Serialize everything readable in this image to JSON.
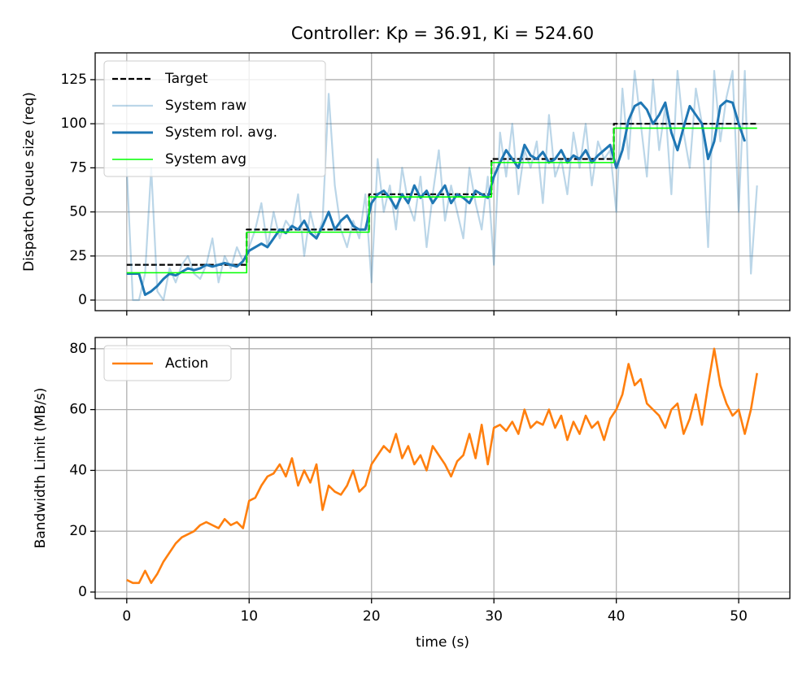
{
  "chart_data": [
    {
      "type": "line",
      "title": "Controller: Kp = 36.91, Ki = 524.60",
      "ylabel": "Dispatch Queue size (req)",
      "xlim": [
        -2.58,
        54.18
      ],
      "xticks": [
        0,
        10,
        20,
        30,
        40,
        50
      ],
      "ylim": [
        -6,
        140.2
      ],
      "yticks": [
        0,
        25,
        50,
        75,
        100,
        125
      ],
      "grid": true,
      "legend": "upper left",
      "series": [
        {
          "name": "Target",
          "color": "#000000",
          "linestyle": "dashed",
          "linewidth": 2.2,
          "opacity": 1,
          "x": [
            0,
            9.8,
            9.8,
            19.8,
            19.8,
            29.8,
            29.8,
            39.8,
            39.8,
            51.5
          ],
          "values": [
            20,
            20,
            40,
            40,
            60,
            60,
            80,
            80,
            100,
            100
          ]
        },
        {
          "name": "System raw",
          "color": "#1f77b4",
          "linestyle": "solid",
          "linewidth": 2.2,
          "opacity": 0.3,
          "x": [
            0,
            0.5,
            1,
            1.5,
            2,
            2.5,
            3,
            3.5,
            4,
            4.5,
            5,
            5.5,
            6,
            6.5,
            7,
            7.5,
            8,
            8.5,
            9,
            9.5,
            10,
            10.5,
            11,
            11.5,
            12,
            12.5,
            13,
            13.5,
            14,
            14.5,
            15,
            15.5,
            16,
            16.5,
            17,
            17.5,
            18,
            18.5,
            19,
            19.5,
            20,
            20.5,
            21,
            21.5,
            22,
            22.5,
            23,
            23.5,
            24,
            24.5,
            25,
            25.5,
            26,
            26.5,
            27,
            27.5,
            28,
            28.5,
            29,
            29.5,
            30,
            30.5,
            31,
            31.5,
            32,
            32.5,
            33,
            33.5,
            34,
            34.5,
            35,
            35.5,
            36,
            36.5,
            37,
            37.5,
            38,
            38.5,
            39,
            39.5,
            40,
            40.5,
            41,
            41.5,
            42,
            42.5,
            43,
            43.5,
            44,
            44.5,
            45,
            45.5,
            46,
            46.5,
            47,
            47.5,
            48,
            48.5,
            49,
            49.5,
            50,
            50.5,
            51,
            51.5
          ],
          "values": [
            75,
            0,
            0,
            15,
            75,
            5,
            0,
            18,
            10,
            20,
            25,
            15,
            12,
            20,
            35,
            10,
            25,
            18,
            30,
            22,
            30,
            40,
            55,
            30,
            50,
            35,
            45,
            40,
            60,
            25,
            50,
            35,
            45,
            117,
            65,
            40,
            30,
            45,
            35,
            60,
            10,
            80,
            50,
            65,
            40,
            75,
            55,
            45,
            70,
            30,
            60,
            85,
            45,
            65,
            50,
            35,
            75,
            55,
            40,
            70,
            20,
            95,
            70,
            100,
            60,
            85,
            75,
            90,
            55,
            105,
            70,
            80,
            60,
            95,
            75,
            100,
            65,
            90,
            80,
            85,
            50,
            120,
            80,
            130,
            100,
            70,
            125,
            85,
            110,
            60,
            130,
            95,
            75,
            120,
            100,
            30,
            130,
            90,
            115,
            130,
            50,
            130,
            15,
            65
          ]
        },
        {
          "name": "System rol. avg.",
          "color": "#1f77b4",
          "linestyle": "solid",
          "linewidth": 3,
          "opacity": 1,
          "x": [
            0,
            0.5,
            1,
            1.5,
            2,
            2.5,
            3,
            3.5,
            4,
            4.5,
            5,
            5.5,
            6,
            6.5,
            7,
            7.5,
            8,
            8.5,
            9,
            9.5,
            10,
            10.5,
            11,
            11.5,
            12,
            12.5,
            13,
            13.5,
            14,
            14.5,
            15,
            15.5,
            16,
            16.5,
            17,
            17.5,
            18,
            18.5,
            19,
            19.5,
            20,
            20.5,
            21,
            21.5,
            22,
            22.5,
            23,
            23.5,
            24,
            24.5,
            25,
            25.5,
            26,
            26.5,
            27,
            27.5,
            28,
            28.5,
            29,
            29.5,
            30,
            30.5,
            31,
            31.5,
            32,
            32.5,
            33,
            33.5,
            34,
            34.5,
            35,
            35.5,
            36,
            36.5,
            37,
            37.5,
            38,
            38.5,
            39,
            39.5,
            40,
            40.5,
            41,
            41.5,
            42,
            42.5,
            43,
            43.5,
            44,
            44.5,
            45,
            45.5,
            46,
            46.5,
            47,
            47.5,
            48,
            48.5,
            49,
            49.5,
            50,
            50.5
          ],
          "values": [
            15,
            15,
            15,
            3,
            5,
            8,
            12,
            15,
            14,
            16,
            18,
            17,
            18,
            20,
            19,
            20,
            21,
            20,
            19,
            22,
            28,
            30,
            32,
            30,
            35,
            40,
            38,
            42,
            40,
            45,
            38,
            35,
            42,
            50,
            40,
            45,
            48,
            42,
            40,
            40,
            55,
            60,
            62,
            58,
            52,
            60,
            55,
            65,
            58,
            62,
            55,
            60,
            65,
            55,
            60,
            58,
            55,
            62,
            60,
            58,
            70,
            78,
            85,
            80,
            75,
            88,
            82,
            80,
            84,
            78,
            80,
            85,
            78,
            82,
            80,
            85,
            78,
            82,
            85,
            88,
            75,
            85,
            102,
            110,
            112,
            108,
            100,
            105,
            112,
            95,
            85,
            98,
            110,
            105,
            100,
            80,
            90,
            110,
            113,
            112,
            100,
            90
          ]
        },
        {
          "name": "System avg",
          "color": "#00ff00",
          "linestyle": "solid",
          "linewidth": 1.6,
          "opacity": 1,
          "x": [
            0,
            9.8,
            9.8,
            19.8,
            19.8,
            29.8,
            29.8,
            39.8,
            39.8,
            51.5
          ],
          "values": [
            15.5,
            15.5,
            38.5,
            38.5,
            58.5,
            58.5,
            78,
            78,
            97.5,
            97.5
          ]
        }
      ]
    },
    {
      "type": "line",
      "xlabel": "time (s)",
      "ylabel": "Bandwidth Limit (MB/s)",
      "xlim": [
        -2.58,
        54.18
      ],
      "xticks": [
        0,
        10,
        20,
        30,
        40,
        50
      ],
      "ylim": [
        -2.14,
        83.7
      ],
      "yticks": [
        0,
        20,
        40,
        60,
        80
      ],
      "grid": true,
      "legend": "upper left",
      "series": [
        {
          "name": "Action",
          "color": "#ff7f0e",
          "linestyle": "solid",
          "linewidth": 2.6,
          "opacity": 1,
          "x": [
            0,
            0.5,
            1,
            1.5,
            2,
            2.5,
            3,
            3.5,
            4,
            4.5,
            5,
            5.5,
            6,
            6.5,
            7,
            7.5,
            8,
            8.5,
            9,
            9.5,
            10,
            10.5,
            11,
            11.5,
            12,
            12.5,
            13,
            13.5,
            14,
            14.5,
            15,
            15.5,
            16,
            16.5,
            17,
            17.5,
            18,
            18.5,
            19,
            19.5,
            20,
            20.5,
            21,
            21.5,
            22,
            22.5,
            23,
            23.5,
            24,
            24.5,
            25,
            25.5,
            26,
            26.5,
            27,
            27.5,
            28,
            28.5,
            29,
            29.5,
            30,
            30.5,
            31,
            31.5,
            32,
            32.5,
            33,
            33.5,
            34,
            34.5,
            35,
            35.5,
            36,
            36.5,
            37,
            37.5,
            38,
            38.5,
            39,
            39.5,
            40,
            40.5,
            41,
            41.5,
            42,
            42.5,
            43,
            43.5,
            44,
            44.5,
            45,
            45.5,
            46,
            46.5,
            47,
            47.5,
            48,
            48.5,
            49,
            49.5,
            50,
            50.5,
            51,
            51.5
          ],
          "values": [
            4,
            3,
            3,
            7,
            3,
            6,
            10,
            13,
            16,
            18,
            19,
            20,
            22,
            23,
            22,
            21,
            24,
            22,
            23,
            21,
            30,
            31,
            35,
            38,
            39,
            42,
            38,
            44,
            35,
            40,
            36,
            42,
            27,
            35,
            33,
            32,
            35,
            40,
            33,
            35,
            42,
            45,
            48,
            46,
            52,
            44,
            48,
            42,
            45,
            40,
            48,
            45,
            42,
            38,
            43,
            45,
            52,
            44,
            55,
            42,
            54,
            55,
            53,
            56,
            52,
            60,
            54,
            56,
            55,
            60,
            54,
            58,
            50,
            56,
            52,
            58,
            54,
            56,
            50,
            57,
            60,
            65,
            75,
            68,
            70,
            62,
            60,
            58,
            54,
            60,
            62,
            52,
            57,
            65,
            55,
            68,
            80,
            68,
            62,
            58,
            60,
            52,
            60,
            72
          ]
        }
      ]
    }
  ]
}
